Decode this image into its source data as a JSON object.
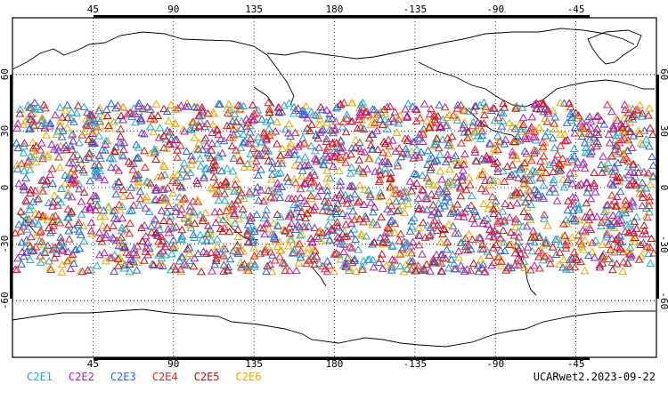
{
  "map": {
    "projection": "cylindrical equidistant",
    "center_lon": 180,
    "lat_range": [
      -90,
      90
    ],
    "grid": true,
    "top_lon_ticks": [
      "45",
      "90",
      "135",
      "180",
      "-135",
      "-90",
      "-45"
    ],
    "bottom_lon_ticks": [
      "45",
      "90",
      "135",
      "180",
      "-135",
      "-90",
      "-45"
    ],
    "lat_ticks": [
      "60",
      "30",
      "0",
      "-30",
      "-60"
    ],
    "marker": "triangle-outline",
    "obs_lat_band": [
      -45,
      45
    ]
  },
  "legend": [
    {
      "label": "C2E1",
      "color": "#22aacc"
    },
    {
      "label": "C2E2",
      "color": "#b020b0"
    },
    {
      "label": "C2E3",
      "color": "#2266dd"
    },
    {
      "label": "C2E4",
      "color": "#ee2222"
    },
    {
      "label": "C2E5",
      "color": "#cc1111"
    },
    {
      "label": "C2E6",
      "color": "#eeaa00"
    }
  ],
  "credit": "UCARwet2.2023-09-22"
}
